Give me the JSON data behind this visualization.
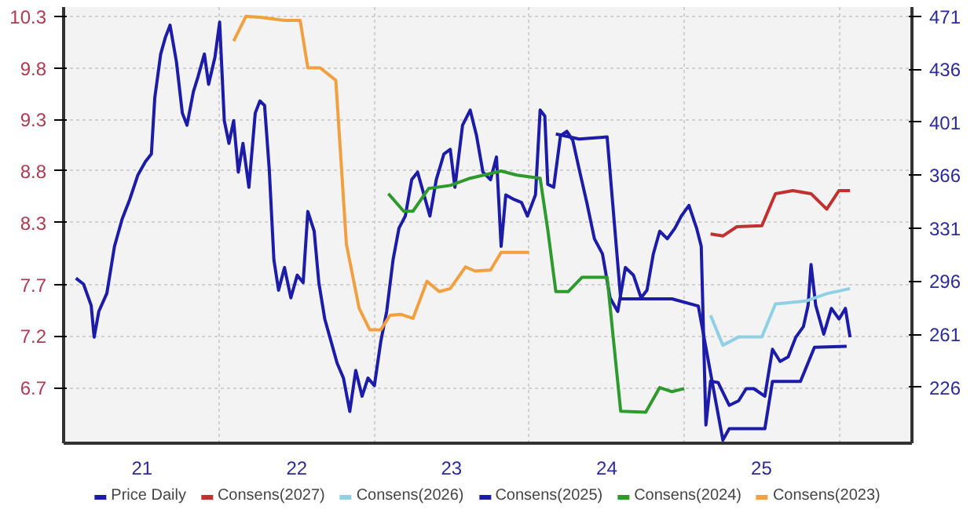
{
  "chart_data": {
    "type": "line",
    "legend": "bottom",
    "grid": true,
    "marker": "none",
    "line_style": "solid",
    "xlim": [
      "2020-12-29",
      "2026-06-22"
    ],
    "xticks": [
      {
        "value": "2021-07-02",
        "label": "21"
      },
      {
        "value": "2022-07-02",
        "label": "22"
      },
      {
        "value": "2023-07-02",
        "label": "23"
      },
      {
        "value": "2024-07-02",
        "label": "24"
      },
      {
        "value": "2025-07-02",
        "label": "25"
      },
      {
        "value": "2022-01-01",
        "label": null
      },
      {
        "value": "2023-01-01",
        "label": null
      },
      {
        "value": "2024-01-01",
        "label": null
      },
      {
        "value": "2025-01-01",
        "label": null
      },
      {
        "value": "2026-01-01",
        "label": null
      }
    ],
    "ylim": [
      6.16,
      10.39
    ],
    "yticks": [
      10.3,
      9.8,
      9.3,
      8.8,
      8.3,
      7.7,
      7.2,
      6.7
    ],
    "y2lim": [
      189,
      477
    ],
    "y2ticks": [
      471,
      436,
      401,
      366,
      331,
      296,
      261,
      226
    ],
    "series": [
      {
        "name": "Price Daily",
        "color": "#1c1ca8",
        "axis": "y2",
        "x": [
          "2021-01-27",
          "2021-02-14",
          "2021-03-04",
          "2021-03-11",
          "2021-03-22",
          "2021-04-10",
          "2021-04-28",
          "2021-05-16",
          "2021-06-03",
          "2021-06-22",
          "2021-07-10",
          "2021-07-24",
          "2021-08-01",
          "2021-08-15",
          "2021-08-26",
          "2021-09-06",
          "2021-09-21",
          "2021-10-05",
          "2021-10-16",
          "2021-10-31",
          "2021-11-11",
          "2021-11-26",
          "2021-12-06",
          "2021-12-21",
          "2022-01-01",
          "2022-01-12",
          "2022-01-23",
          "2022-02-03",
          "2022-02-14",
          "2022-02-25",
          "2022-03-11",
          "2022-03-26",
          "2022-04-06",
          "2022-04-17",
          "2022-04-28",
          "2022-05-09",
          "2022-05-20",
          "2022-06-03",
          "2022-06-18",
          "2022-07-03",
          "2022-07-17",
          "2022-07-28",
          "2022-08-12",
          "2022-08-23",
          "2022-09-06",
          "2022-09-21",
          "2022-10-05",
          "2022-10-20",
          "2022-11-04",
          "2022-11-18",
          "2022-12-03",
          "2022-12-17",
          "2023-01-01",
          "2023-01-16",
          "2023-01-30",
          "2023-02-14",
          "2023-02-28",
          "2023-03-15",
          "2023-03-30",
          "2023-04-13",
          "2023-04-28",
          "2023-05-12",
          "2023-05-27",
          "2023-06-14",
          "2023-06-29",
          "2023-07-10",
          "2023-07-28",
          "2023-08-15",
          "2023-08-30",
          "2023-09-14",
          "2023-10-02",
          "2023-10-16",
          "2023-10-27",
          "2023-11-07",
          "2023-11-26",
          "2023-12-14",
          "2023-12-28",
          "2024-01-16",
          "2024-01-27",
          "2024-02-07",
          "2024-02-14",
          "2024-02-28",
          "2024-03-15",
          "2024-03-30",
          "2024-04-13",
          "2024-04-28",
          "2024-05-16",
          "2024-06-03",
          "2024-06-22",
          "2024-07-10",
          "2024-07-28",
          "2024-08-15",
          "2024-09-03",
          "2024-09-21",
          "2024-10-05",
          "2024-10-20",
          "2024-11-04",
          "2024-11-22",
          "2024-12-10",
          "2024-12-25",
          "2025-01-12",
          "2025-01-30",
          "2025-02-10",
          "2025-02-21",
          "2025-03-04",
          "2025-03-22",
          "2025-04-17",
          "2025-05-09",
          "2025-05-27",
          "2025-06-14",
          "2025-07-10",
          "2025-07-28",
          "2025-08-15",
          "2025-09-03",
          "2025-09-21",
          "2025-10-09",
          "2025-10-20",
          "2025-10-27",
          "2025-11-07",
          "2025-11-26",
          "2025-12-14",
          "2026-01-01",
          "2026-01-16",
          "2026-01-27"
        ],
        "values": [
          298,
          294,
          280,
          259,
          276,
          288,
          319,
          337,
          350,
          366,
          375,
          380,
          417,
          446,
          457,
          465,
          441,
          407,
          399,
          421,
          431,
          446,
          426,
          444,
          467,
          402,
          387,
          402,
          368,
          387,
          358,
          407,
          415,
          412,
          370,
          310,
          290,
          305,
          285,
          300,
          295,
          342,
          329,
          295,
          271,
          256,
          242,
          232,
          210,
          237,
          220,
          232,
          227,
          256,
          276,
          310,
          331,
          339,
          363,
          368,
          353,
          339,
          363,
          380,
          383,
          358,
          399,
          409,
          392,
          368,
          363,
          378,
          319,
          353,
          350,
          348,
          339,
          353,
          409,
          405,
          360,
          358,
          392,
          395,
          389,
          370,
          348,
          324,
          314,
          285,
          276,
          305,
          300,
          285,
          290,
          314,
          329,
          324,
          331,
          339,
          346,
          331,
          319,
          201,
          230,
          229,
          214,
          217,
          225,
          225,
          220,
          251,
          243,
          246,
          259,
          266,
          280,
          307,
          280,
          261,
          278,
          271,
          278,
          259
        ]
      },
      {
        "name": "Consens(2027)",
        "color": "#c0312f",
        "x": [
          "2025-03-04",
          "2025-04-02",
          "2025-05-05",
          "2025-07-03",
          "2025-08-04",
          "2025-09-14",
          "2025-10-27",
          "2025-12-03",
          "2026-01-01",
          "2026-01-27"
        ],
        "values": [
          8.19,
          8.17,
          8.26,
          8.27,
          8.58,
          8.61,
          8.58,
          8.43,
          8.61,
          8.61
        ]
      },
      {
        "name": "Consens(2026)",
        "color": "#8fd0e4",
        "x": [
          "2025-03-04",
          "2025-04-02",
          "2025-05-09",
          "2025-07-03",
          "2025-08-04",
          "2025-10-16",
          "2025-12-03",
          "2026-01-27"
        ],
        "values": [
          7.4,
          7.11,
          7.19,
          7.19,
          7.51,
          7.54,
          7.61,
          7.66
        ]
      },
      {
        "name": "Consens(2025)",
        "color": "#1c1ca8",
        "x": [
          "2024-03-04",
          "2024-04-28",
          "2024-07-03",
          "2024-08-04",
          "2024-09-03",
          "2024-12-03",
          "2025-02-03",
          "2025-04-02",
          "2025-04-17",
          "2025-07-10",
          "2025-07-28",
          "2025-10-02",
          "2025-11-04",
          "2026-01-19"
        ],
        "values": [
          9.16,
          9.11,
          9.13,
          7.56,
          7.56,
          7.56,
          7.49,
          6.19,
          6.3,
          6.3,
          6.76,
          6.76,
          7.09,
          7.1
        ]
      },
      {
        "name": "Consens(2024)",
        "color": "#2e9a2e",
        "x": [
          "2023-02-03",
          "2023-03-11",
          "2023-04-02",
          "2023-05-09",
          "2023-06-29",
          "2023-08-15",
          "2023-10-27",
          "2023-12-03",
          "2024-01-27",
          "2024-02-14",
          "2024-03-04",
          "2024-04-02",
          "2024-05-05",
          "2024-07-03",
          "2024-08-04",
          "2024-10-02",
          "2024-11-04",
          "2024-12-03",
          "2025-01-01"
        ],
        "values": [
          8.58,
          8.41,
          8.41,
          8.63,
          8.66,
          8.73,
          8.8,
          8.76,
          8.73,
          8.23,
          7.63,
          7.63,
          7.77,
          7.77,
          6.47,
          6.46,
          6.7,
          6.66,
          6.69
        ]
      },
      {
        "name": "Consens(2023)",
        "color": "#f0a040",
        "x": [
          "2022-02-03",
          "2022-03-04",
          "2022-04-10",
          "2022-06-03",
          "2022-07-10",
          "2022-07-28",
          "2022-08-26",
          "2022-10-02",
          "2022-10-27",
          "2022-11-26",
          "2022-12-21",
          "2023-01-16",
          "2023-02-07",
          "2023-03-04",
          "2023-04-02",
          "2023-05-05",
          "2023-06-03",
          "2023-06-29",
          "2023-08-04",
          "2023-08-26",
          "2023-10-02",
          "2023-10-27",
          "2024-01-01"
        ],
        "values": [
          10.06,
          10.3,
          10.29,
          10.26,
          10.26,
          9.8,
          9.8,
          9.68,
          8.09,
          7.47,
          7.26,
          7.26,
          7.4,
          7.41,
          7.37,
          7.73,
          7.63,
          7.66,
          7.87,
          7.83,
          7.84,
          8.01,
          8.01
        ]
      }
    ]
  }
}
